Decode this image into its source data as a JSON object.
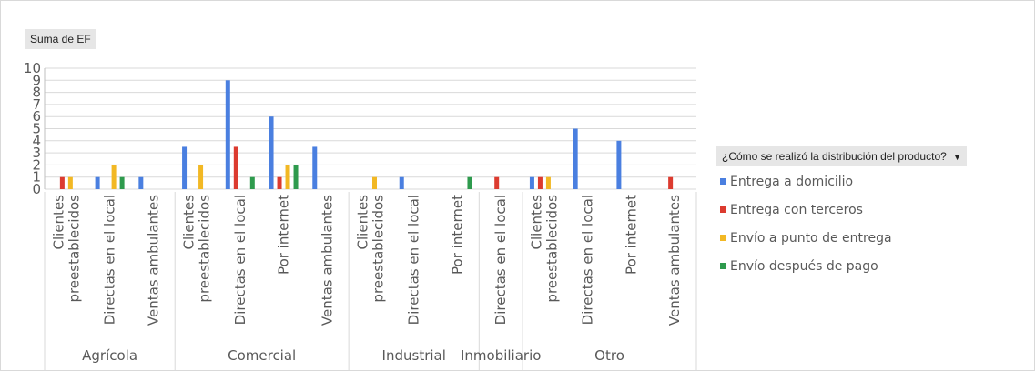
{
  "field_button": "Suma de EF",
  "legend": {
    "title": "¿Cómo se realizó la distribución del producto?",
    "dropdown_icon": "triangle-down-icon"
  },
  "colors": {
    "series": [
      "#4a7fe0",
      "#dc3b2f",
      "#f2b824",
      "#2e9a4d"
    ],
    "grid": "#d9d9d9",
    "text": "#595959"
  },
  "chart_data": {
    "type": "bar",
    "ylim": [
      0,
      10
    ],
    "yticks": [
      0,
      1,
      2,
      3,
      4,
      5,
      6,
      7,
      8,
      9,
      10
    ],
    "grid": true,
    "legend_position": "right",
    "groups": [
      {
        "name": "Agrícola",
        "categories": [
          "Clientes preestablecidos",
          "Directas en el local",
          "Ventas ambulantes"
        ]
      },
      {
        "name": "Comercial",
        "categories": [
          "Clientes preestablecidos",
          "Directas en el local",
          "Por internet",
          "Ventas ambulantes"
        ]
      },
      {
        "name": "Industrial",
        "categories": [
          "Clientes preestablecidos",
          "Directas en el local",
          "Por internet"
        ]
      },
      {
        "name": "Inmobiliario",
        "categories": [
          "Directas en el local"
        ]
      },
      {
        "name": "Otro",
        "categories": [
          "Clientes preestablecidos",
          "Directas en el local",
          "Por internet",
          "Ventas ambulantes"
        ]
      }
    ],
    "series": [
      {
        "name": "Entrega a domicilio",
        "values": [
          0,
          1,
          1,
          3.5,
          9,
          6,
          3.5,
          0,
          1,
          0,
          0,
          1,
          5,
          4,
          0
        ]
      },
      {
        "name": "Entrega con terceros",
        "values": [
          1,
          0,
          0,
          0,
          3.5,
          1,
          0,
          0,
          0,
          0,
          1,
          1,
          0,
          0,
          1
        ]
      },
      {
        "name": "Envío a punto de entrega",
        "values": [
          1,
          2,
          0,
          2,
          0,
          2,
          0,
          1,
          0,
          0,
          0,
          1,
          0,
          0,
          0
        ]
      },
      {
        "name": "Envío después de pago",
        "values": [
          0,
          1,
          0,
          0,
          1,
          2,
          0,
          0,
          0,
          1,
          0,
          0,
          0,
          0,
          0
        ]
      }
    ]
  }
}
